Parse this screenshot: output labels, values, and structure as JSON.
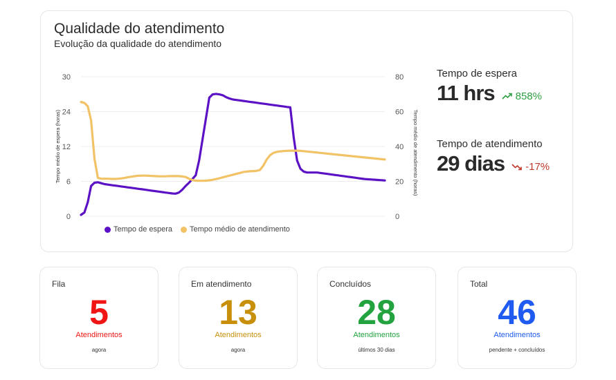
{
  "header": {
    "title": "Qualidade do atendimento",
    "subtitle": "Evolução da qualidade do atendimento"
  },
  "chart_data": {
    "type": "line",
    "x": [
      0,
      1,
      2,
      3,
      4,
      5,
      6,
      7,
      8,
      9,
      10,
      11,
      12,
      13,
      14,
      15,
      16,
      17,
      18,
      19,
      20,
      21,
      22,
      23,
      24,
      25,
      26,
      27,
      28,
      29,
      30,
      31,
      32,
      33,
      34,
      35,
      36,
      37,
      38,
      39,
      40,
      41,
      42,
      43,
      44,
      45,
      46,
      47,
      48,
      49,
      50,
      51,
      52,
      53,
      54,
      55,
      56,
      57,
      58,
      59,
      60,
      61,
      62,
      63,
      64,
      65,
      66,
      67,
      68,
      69,
      70,
      71,
      72,
      73,
      74,
      75,
      76,
      77,
      78,
      79,
      80,
      81,
      82,
      83,
      84,
      85,
      86,
      87,
      88,
      89,
      90
    ],
    "series": [
      {
        "name": "Tempo de espera",
        "axis": "left",
        "color": "#5b12c4",
        "values": [
          0.3,
          0.8,
          3,
          6.5,
          7.2,
          7.3,
          7.1,
          6.9,
          6.8,
          6.7,
          6.6,
          6.5,
          6.4,
          6.3,
          6.2,
          6.1,
          6.0,
          5.9,
          5.8,
          5.7,
          5.6,
          5.5,
          5.4,
          5.3,
          5.2,
          5.1,
          5.0,
          4.9,
          4.85,
          5.1,
          5.7,
          6.5,
          7.2,
          8.0,
          8.8,
          12,
          16.5,
          21,
          25.5,
          26.2,
          26.3,
          26.2,
          26.0,
          25.6,
          25.3,
          25.1,
          25.0,
          24.9,
          24.8,
          24.7,
          24.6,
          24.5,
          24.4,
          24.3,
          24.2,
          24.1,
          24.0,
          23.9,
          23.8,
          23.7,
          23.6,
          23.5,
          23.4,
          17,
          12,
          10.2,
          9.6,
          9.4,
          9.4,
          9.4,
          9.4,
          9.3,
          9.2,
          9.1,
          9.0,
          8.9,
          8.8,
          8.7,
          8.6,
          8.5,
          8.4,
          8.3,
          8.2,
          8.1,
          8.0,
          7.95,
          7.9,
          7.85,
          7.8,
          7.75,
          7.7
        ]
      },
      {
        "name": "Tempo médio de atendimento",
        "axis": "right",
        "color": "#f2c266",
        "values": [
          65.5,
          65,
          63,
          55,
          33,
          22,
          21.5,
          21.5,
          21.5,
          21.4,
          21.4,
          21.5,
          21.7,
          22,
          22.4,
          22.7,
          23,
          23.2,
          23.3,
          23.3,
          23.2,
          23.1,
          23,
          22.9,
          22.9,
          22.9,
          23,
          23,
          23,
          23,
          22.8,
          22.5,
          21.5,
          20.8,
          20.4,
          20.3,
          20.3,
          20.4,
          20.6,
          20.9,
          21.3,
          21.8,
          22.3,
          22.8,
          23.3,
          23.8,
          24.3,
          24.8,
          25.3,
          25.6,
          25.8,
          25.9,
          26,
          26.5,
          29,
          32.5,
          35,
          36.3,
          36.9,
          37.2,
          37.4,
          37.5,
          37.6,
          37.6,
          37.6,
          37.5,
          37.3,
          37.1,
          36.9,
          36.7,
          36.5,
          36.3,
          36.1,
          35.9,
          35.7,
          35.5,
          35.3,
          35.1,
          34.9,
          34.7,
          34.5,
          34.3,
          34.1,
          33.9,
          33.7,
          33.5,
          33.3,
          33.1,
          32.9,
          32.7,
          32.5
        ]
      }
    ],
    "ylabel": "Tempo médio de espera (horas)",
    "y2label": "Tempo médio de atendimento (horas)",
    "yticks": [
      "30",
      "24",
      "12",
      "6",
      "0"
    ],
    "y2ticks": [
      "80",
      "60",
      "40",
      "20",
      "0"
    ],
    "ylim": [
      0,
      30
    ],
    "y2lim": [
      0,
      80
    ],
    "grid": true,
    "legend_position": "bottom-left"
  },
  "metrics": [
    {
      "label": "Tempo de espera",
      "value": "11 hrs",
      "change": "858%",
      "direction": "up",
      "color": "#2e9e44"
    },
    {
      "label": "Tempo de atendimento",
      "value": "29 dias",
      "change": "-17%",
      "direction": "down",
      "color": "#c0392b"
    }
  ],
  "stats": [
    {
      "label": "Fila",
      "value": "5",
      "unit": "Atendimentos",
      "note": "agora",
      "color": "#f01414"
    },
    {
      "label": "Em atendimento",
      "value": "13",
      "unit": "Atendimentos",
      "note": "agora",
      "color": "#c8900a"
    },
    {
      "label": "Concluídos",
      "value": "28",
      "unit": "Atendimentos",
      "note": "últimos 30 dias",
      "color": "#22a33f"
    },
    {
      "label": "Total",
      "value": "46",
      "unit": "Atendimentos",
      "note": "pendente + concluídos",
      "color": "#1f5bf0"
    }
  ]
}
